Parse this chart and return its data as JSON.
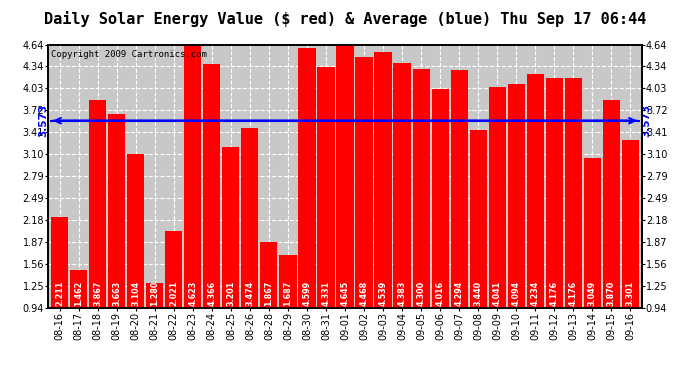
{
  "title": "Daily Solar Energy Value ($ red) & Average (blue) Thu Sep 17 06:44",
  "copyright": "Copyright 2009 Cartronics.com",
  "average": 3.573,
  "bar_color": "#FF0000",
  "avg_line_color": "#0000FF",
  "background_color": "#FFFFFF",
  "plot_bg_color": "#C8C8C8",
  "categories": [
    "08-16",
    "08-17",
    "08-18",
    "08-19",
    "08-20",
    "08-21",
    "08-22",
    "08-23",
    "08-24",
    "08-25",
    "08-26",
    "08-28",
    "08-29",
    "08-30",
    "08-31",
    "09-01",
    "09-02",
    "09-03",
    "09-04",
    "09-05",
    "09-06",
    "09-07",
    "09-08",
    "09-09",
    "09-10",
    "09-11",
    "09-12",
    "09-13",
    "09-14",
    "09-15",
    "09-16"
  ],
  "values": [
    2.211,
    1.462,
    3.867,
    3.663,
    3.104,
    1.28,
    2.021,
    4.623,
    4.366,
    3.201,
    3.474,
    1.867,
    1.687,
    4.599,
    4.331,
    4.645,
    4.468,
    4.539,
    4.383,
    4.3,
    4.016,
    4.294,
    3.44,
    4.041,
    4.094,
    4.234,
    4.176,
    4.176,
    3.049,
    3.87,
    3.301
  ],
  "ylim_min": 0.94,
  "ylim_max": 4.64,
  "yticks": [
    0.94,
    1.25,
    1.56,
    1.87,
    2.18,
    2.49,
    2.79,
    3.1,
    3.41,
    3.72,
    4.03,
    4.34,
    4.64
  ],
  "grid_color": "#FFFFFF",
  "title_fontsize": 11,
  "tick_fontsize": 7,
  "bar_label_fontsize": 5.8,
  "copyright_fontsize": 6.5
}
